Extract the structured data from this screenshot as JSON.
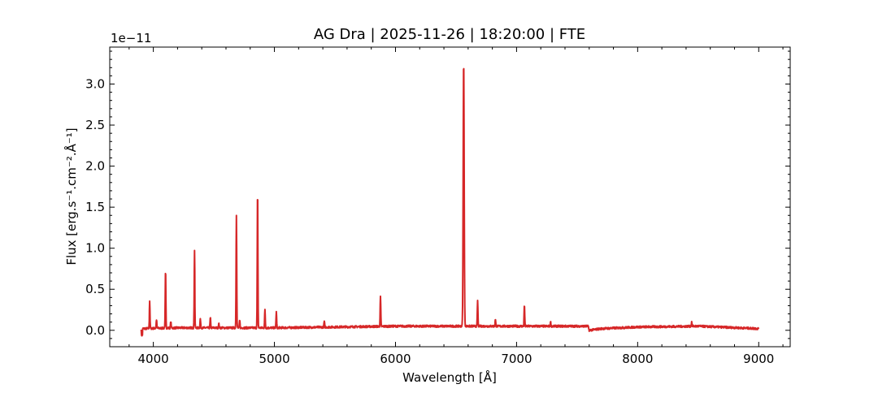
{
  "chart_data": {
    "type": "line",
    "title": "AG Dra | 2025-11-26 | 18:20:00 | FTE",
    "xlabel": "Wavelength [Å]",
    "ylabel": "Flux [erg.s⁻¹.cm⁻².Å⁻¹]",
    "y_scale_label": "1e−11",
    "xlim": [
      3640,
      9260
    ],
    "ylim": [
      -0.2,
      3.45
    ],
    "x_ticks": [
      4000,
      5000,
      6000,
      7000,
      8000,
      9000
    ],
    "x_tick_labels": [
      "4000",
      "5000",
      "6000",
      "7000",
      "8000",
      "9000"
    ],
    "y_ticks": [
      0.0,
      0.5,
      1.0,
      1.5,
      2.0,
      2.5,
      3.0
    ],
    "y_tick_labels": [
      "0.0",
      "0.5",
      "1.0",
      "1.5",
      "2.0",
      "2.5",
      "3.0"
    ],
    "grid": false,
    "line_color": "#d62728",
    "series": [
      {
        "continuum": [
          [
            3900,
            0.02
          ],
          [
            4200,
            0.03
          ],
          [
            5000,
            0.03
          ],
          [
            6000,
            0.05
          ],
          [
            7000,
            0.05
          ],
          [
            7590,
            0.05
          ],
          [
            7600,
            0.0
          ],
          [
            7700,
            0.02
          ],
          [
            8000,
            0.04
          ],
          [
            8500,
            0.05
          ],
          [
            9000,
            0.02
          ]
        ],
        "emission_lines": [
          {
            "x": 3970,
            "y": 0.36
          },
          {
            "x": 4026,
            "y": 0.13
          },
          {
            "x": 4101,
            "y": 0.74
          },
          {
            "x": 4144,
            "y": 0.11
          },
          {
            "x": 4340,
            "y": 0.98
          },
          {
            "x": 4388,
            "y": 0.14
          },
          {
            "x": 4471,
            "y": 0.15
          },
          {
            "x": 4541,
            "y": 0.08
          },
          {
            "x": 4686,
            "y": 1.41
          },
          {
            "x": 4713,
            "y": 0.12
          },
          {
            "x": 4861,
            "y": 1.71
          },
          {
            "x": 4922,
            "y": 0.25
          },
          {
            "x": 5016,
            "y": 0.22
          },
          {
            "x": 5412,
            "y": 0.11
          },
          {
            "x": 5876,
            "y": 0.41
          },
          {
            "x": 6563,
            "y": 3.29
          },
          {
            "x": 6678,
            "y": 0.36
          },
          {
            "x": 6825,
            "y": 0.13
          },
          {
            "x": 7065,
            "y": 0.31
          },
          {
            "x": 7281,
            "y": 0.1
          },
          {
            "x": 8446,
            "y": 0.1
          }
        ]
      }
    ]
  }
}
